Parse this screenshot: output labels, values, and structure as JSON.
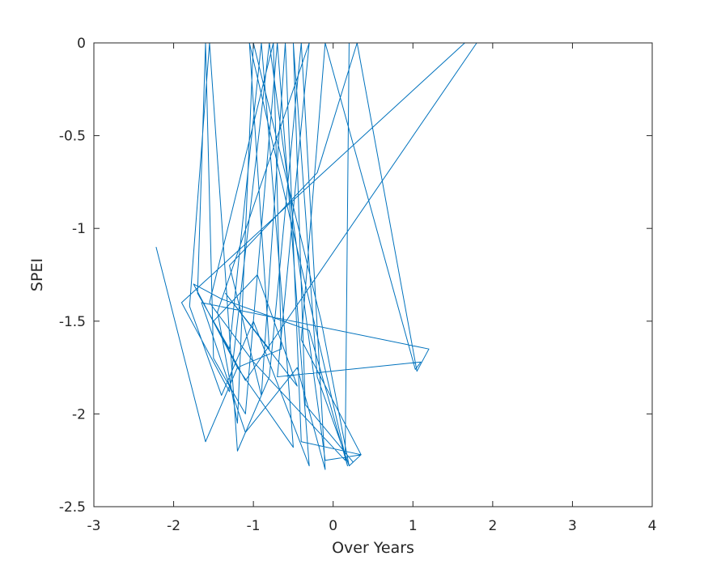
{
  "chart_data": {
    "type": "line",
    "title": "",
    "xlabel": "Over Years",
    "ylabel": "SPEI",
    "xlim": [
      -3,
      4
    ],
    "ylim": [
      -2.5,
      0
    ],
    "xticks": [
      -3,
      -2,
      -1,
      0,
      1,
      2,
      3,
      4
    ],
    "yticks": [
      0,
      -0.5,
      -1,
      -1.5,
      -2,
      -2.5
    ],
    "xtick_labels": [
      "-3",
      "-2",
      "-1",
      "0",
      "1",
      "2",
      "3",
      "4"
    ],
    "ytick_labels": [
      "0",
      "-0.5",
      "-1",
      "-1.5",
      "-2",
      "-2.5"
    ],
    "grid": false,
    "box": true,
    "series": [
      {
        "color": "#0072BD",
        "x": [
          -2.22,
          -1.6,
          -1.2,
          -0.5,
          -0.6,
          -0.9,
          -1.3,
          -1.7,
          -1.6,
          -1.5,
          -1.1,
          -0.7,
          -0.3,
          -1.0,
          -1.4,
          -1.8,
          -1.55,
          -1.2,
          -0.8,
          -0.4,
          -0.1,
          -0.45,
          -1.1,
          -1.65,
          1.2,
          1.05,
          0.3,
          -0.2,
          -1.3,
          -0.9,
          -0.6,
          -0.4,
          0.35,
          0.2,
          -0.2,
          -0.5,
          -0.35,
          0.25,
          0.2,
          -0.15,
          -1.0,
          -1.2,
          -1.45,
          -0.3,
          -0.7,
          1.1,
          1.03,
          -0.1,
          -0.4,
          0.35,
          -0.1,
          -0.8,
          -1.3,
          -1.9,
          1.65,
          1.8,
          -1.1,
          -1.5,
          -0.95,
          -0.45,
          -1.35,
          -0.8,
          -1.05,
          0.18,
          -0.3,
          -1.4,
          -1.75,
          -1.2,
          -0.65,
          -0.75,
          -1.55,
          -1.0,
          0.15,
          0.2,
          -2.2,
          3.7
        ],
        "y": [
          -1.1,
          -2.15,
          -1.75,
          -2.18,
          -1.6,
          0,
          -1.65,
          -1.35,
          0,
          -1.7,
          -2.0,
          0,
          -2.28,
          -1.5,
          -1.9,
          -1.42,
          0,
          -2.2,
          -1.8,
          0,
          -2.3,
          -1.75,
          -2.1,
          -1.4,
          -1.65,
          -1.77,
          0,
          -0.7,
          -1.2,
          -1.9,
          0,
          -2.15,
          -2.22,
          -2.28,
          -1.8,
          0,
          -1.95,
          -2.26,
          -2.28,
          -1.5,
          0,
          -2.05,
          -1.45,
          0,
          -1.8,
          -1.72,
          -1.76,
          0,
          -1.6,
          -2.22,
          -2.25,
          0,
          -1.88,
          -1.4,
          0,
          0,
          -1.82,
          -1.5,
          -1.25,
          -1.85,
          -1.35,
          -1.65,
          0,
          -2.28,
          -1.55,
          -1.38,
          -1.3,
          -1.75,
          -1.65,
          0,
          -1.4,
          -1.72,
          -2.25,
          0,
          0,
          0
        ]
      }
    ]
  }
}
